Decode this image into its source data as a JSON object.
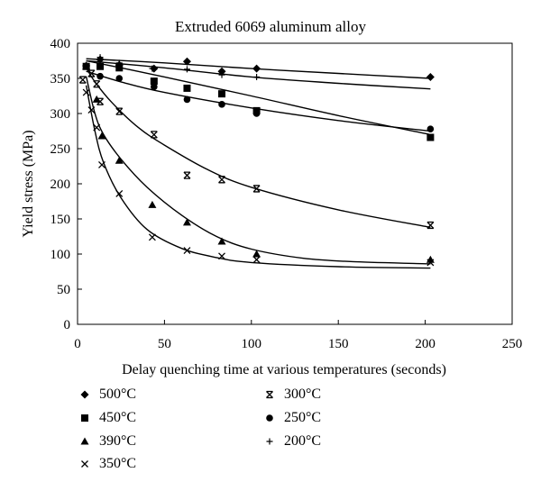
{
  "chart_data": {
    "type": "scatter",
    "title": "Extruded 6069 aluminum alloy",
    "xlabel": "Delay quenching time at various temperatures (seconds)",
    "ylabel": "Yield stress (MPa)",
    "xlim": [
      0,
      250
    ],
    "ylim": [
      0,
      400
    ],
    "xticks": [
      "0",
      "50",
      "100",
      "150",
      "200",
      "250"
    ],
    "yticks": [
      "0",
      "50",
      "100",
      "150",
      "200",
      "250",
      "300",
      "350",
      "400"
    ],
    "grid": false,
    "legend_position": "bottom",
    "series": [
      {
        "name": "500°C",
        "marker": "diamond",
        "x": [
          5,
          13,
          24,
          44,
          63,
          83,
          103,
          203
        ],
        "y": [
          368,
          377,
          369,
          364,
          374,
          360,
          364,
          352
        ],
        "fit": [
          [
            5,
            378
          ],
          [
            50,
            372
          ],
          [
            100,
            364
          ],
          [
            150,
            357
          ],
          [
            203,
            350
          ]
        ]
      },
      {
        "name": "450°C",
        "marker": "square",
        "x": [
          5,
          13,
          24,
          44,
          63,
          83,
          103,
          203
        ],
        "y": [
          367,
          367,
          365,
          346,
          336,
          328,
          304,
          266
        ],
        "fit": [
          [
            5,
            375
          ],
          [
            25,
            365
          ],
          [
            50,
            352
          ],
          [
            100,
            325
          ],
          [
            150,
            297
          ],
          [
            203,
            270
          ]
        ]
      },
      {
        "name": "390°C",
        "marker": "triangle",
        "x": [
          5,
          11,
          14,
          24,
          43,
          63,
          83,
          103,
          203
        ],
        "y": [
          367,
          320,
          268,
          233,
          170,
          145,
          118,
          100,
          92
        ],
        "fit": [
          [
            5,
            353
          ],
          [
            10,
            300
          ],
          [
            15,
            270
          ],
          [
            25,
            235
          ],
          [
            40,
            195
          ],
          [
            60,
            155
          ],
          [
            80,
            125
          ],
          [
            100,
            107
          ],
          [
            130,
            94
          ],
          [
            160,
            89
          ],
          [
            203,
            86
          ]
        ]
      },
      {
        "name": "350°C",
        "marker": "x",
        "x": [
          5,
          8,
          11,
          14,
          24,
          43,
          63,
          83,
          103,
          203
        ],
        "y": [
          330,
          305,
          280,
          227,
          186,
          124,
          105,
          97,
          92,
          88
        ],
        "fit": [
          [
            5,
            340
          ],
          [
            10,
            275
          ],
          [
            15,
            230
          ],
          [
            25,
            180
          ],
          [
            40,
            135
          ],
          [
            60,
            108
          ],
          [
            80,
            95
          ],
          [
            100,
            88
          ],
          [
            150,
            82
          ],
          [
            203,
            80
          ]
        ]
      },
      {
        "name": "300°C",
        "marker": "star",
        "x": [
          3,
          8,
          11,
          13,
          24,
          44,
          63,
          83,
          103,
          203
        ],
        "y": [
          348,
          357,
          342,
          317,
          303,
          270,
          212,
          206,
          193,
          141
        ],
        "fit": [
          [
            5,
            365
          ],
          [
            10,
            345
          ],
          [
            20,
            315
          ],
          [
            35,
            280
          ],
          [
            50,
            255
          ],
          [
            75,
            220
          ],
          [
            100,
            195
          ],
          [
            150,
            163
          ],
          [
            203,
            138
          ]
        ]
      },
      {
        "name": "250°C",
        "marker": "circle",
        "x": [
          5,
          13,
          24,
          44,
          63,
          83,
          103,
          203
        ],
        "y": [
          367,
          353,
          350,
          338,
          320,
          313,
          300,
          278
        ],
        "fit": [
          [
            5,
            360
          ],
          [
            25,
            345
          ],
          [
            50,
            330
          ],
          [
            100,
            308
          ],
          [
            150,
            290
          ],
          [
            203,
            275
          ]
        ]
      },
      {
        "name": "200°C",
        "marker": "plus",
        "x": [
          13,
          24,
          43,
          63,
          83,
          103
        ],
        "y": [
          380,
          372,
          364,
          363,
          355,
          352
        ],
        "fit": [
          [
            5,
            375
          ],
          [
            50,
            365
          ],
          [
            100,
            352
          ],
          [
            150,
            343
          ],
          [
            203,
            335
          ]
        ]
      }
    ]
  }
}
